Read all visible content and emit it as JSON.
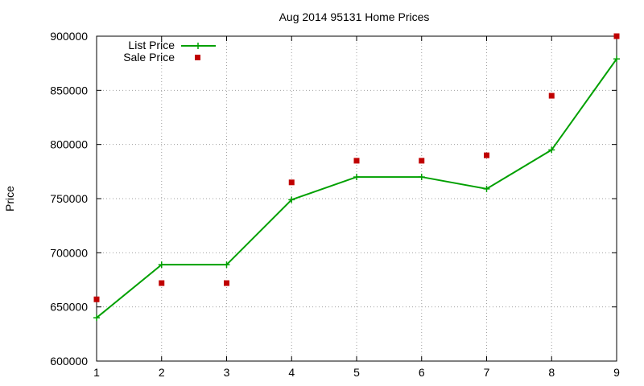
{
  "chart_data": {
    "type": "line",
    "title": "Aug 2014 95131 Home Prices",
    "xlabel": "",
    "ylabel": "Price",
    "x": [
      1,
      2,
      3,
      4,
      5,
      6,
      7,
      8,
      9
    ],
    "xlim": [
      1,
      9
    ],
    "ylim": [
      600000,
      900000
    ],
    "xticks": [
      "1",
      "2",
      "3",
      "4",
      "5",
      "6",
      "7",
      "8",
      "9"
    ],
    "yticks": [
      "600000",
      "650000",
      "700000",
      "750000",
      "800000",
      "850000",
      "900000"
    ],
    "grid": true,
    "legend_position": "top-left",
    "series": [
      {
        "name": "List Price",
        "style": "line-with-plus-markers",
        "color": "#00a000",
        "values": [
          640000,
          689000,
          689000,
          749000,
          770000,
          770000,
          759000,
          795000,
          879000
        ]
      },
      {
        "name": "Sale Price",
        "style": "square-markers",
        "color": "#c00000",
        "values": [
          657000,
          672000,
          672000,
          765000,
          785000,
          785000,
          790000,
          845000,
          900000
        ]
      }
    ]
  }
}
